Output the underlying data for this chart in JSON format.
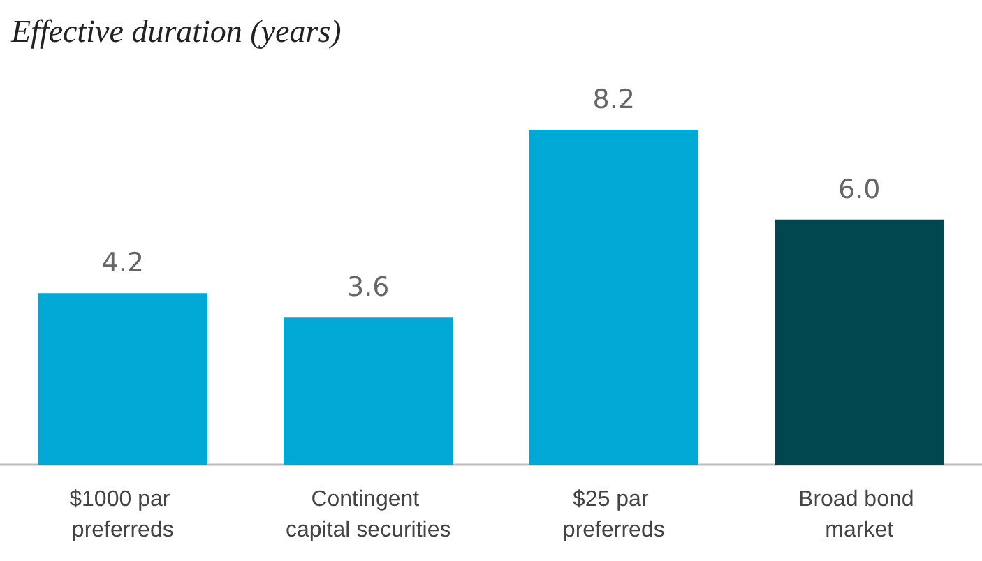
{
  "chart_data": {
    "type": "bar",
    "title": "Effective duration (years)",
    "categories": [
      "$1000 par preferreds",
      "Contingent capital securities",
      "$25 par preferreds",
      "Broad bond market"
    ],
    "values": [
      4.2,
      3.6,
      8.2,
      6.0
    ],
    "colors": [
      "#00a8d6",
      "#00a8d6",
      "#00a8d6",
      "#00474f"
    ],
    "value_labels": [
      "4.2",
      "3.6",
      "8.2",
      "6.0"
    ]
  }
}
